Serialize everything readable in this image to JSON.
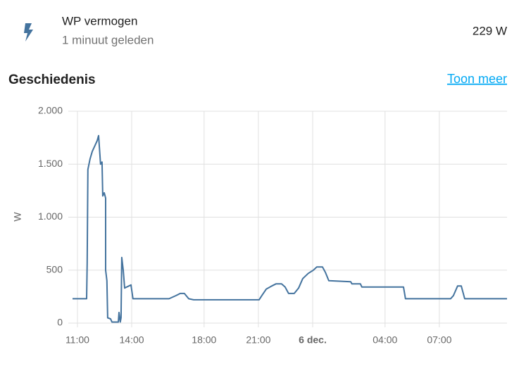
{
  "entity": {
    "name": "WP vermogen",
    "last_changed": "1 minuut geleden",
    "state": "229 W"
  },
  "history": {
    "title": "Geschiedenis",
    "link": "Toon meer"
  },
  "chart_data": {
    "type": "line",
    "y_label": "W",
    "color": "#44739e",
    "grid": true,
    "x": [
      10.73,
      11.51,
      11.54,
      11.58,
      11.7,
      11.82,
      12.09,
      12.17,
      12.28,
      12.36,
      12.4,
      12.48,
      12.56,
      12.56,
      12.63,
      12.67,
      12.83,
      12.91,
      13.26,
      13.3,
      13.37,
      13.41,
      13.45,
      13.53,
      13.61,
      13.72,
      13.84,
      13.96,
      14.07,
      16.06,
      16.45,
      16.68,
      16.91,
      17.15,
      17.42,
      21.04,
      21.19,
      21.43,
      21.74,
      21.97,
      22.28,
      22.48,
      22.67,
      22.98,
      23.22,
      23.45,
      23.76,
      24.04,
      24.23,
      24.54,
      24.7,
      24.89,
      26.1,
      26.17,
      26.64,
      26.72,
      29.02,
      29.13,
      31.62,
      31.78,
      32.01,
      32.21,
      32.4,
      34.74
    ],
    "series": [
      {
        "name": "WP vermogen",
        "color": "#44739e",
        "values": [
          230,
          230,
          570,
          1450,
          1550,
          1620,
          1720,
          1770,
          1500,
          1520,
          1200,
          1230,
          1180,
          500,
          400,
          50,
          40,
          10,
          10,
          100,
          10,
          50,
          620,
          500,
          330,
          340,
          350,
          360,
          230,
          230,
          260,
          280,
          280,
          230,
          220,
          220,
          260,
          320,
          350,
          370,
          370,
          340,
          280,
          280,
          330,
          420,
          470,
          500,
          530,
          530,
          480,
          400,
          390,
          370,
          370,
          340,
          340,
          230,
          230,
          260,
          350,
          350,
          230,
          230
        ]
      }
    ],
    "xlim": [
      10.73,
      34.74
    ],
    "xticks": [
      {
        "value": 11,
        "label": "11:00"
      },
      {
        "value": 14,
        "label": "14:00"
      },
      {
        "value": 18,
        "label": "18:00"
      },
      {
        "value": 21,
        "label": "21:00"
      },
      {
        "value": 24,
        "label": "6 dec."
      },
      {
        "value": 28,
        "label": "04:00"
      },
      {
        "value": 31,
        "label": "07:00"
      }
    ],
    "ylim": [
      0,
      2000
    ],
    "yticks": [
      0,
      500,
      {
        "value": 1000,
        "label": "1.000"
      },
      {
        "value": 1500,
        "label": "1.500"
      },
      {
        "value": 2000,
        "label": "2.000"
      }
    ]
  }
}
